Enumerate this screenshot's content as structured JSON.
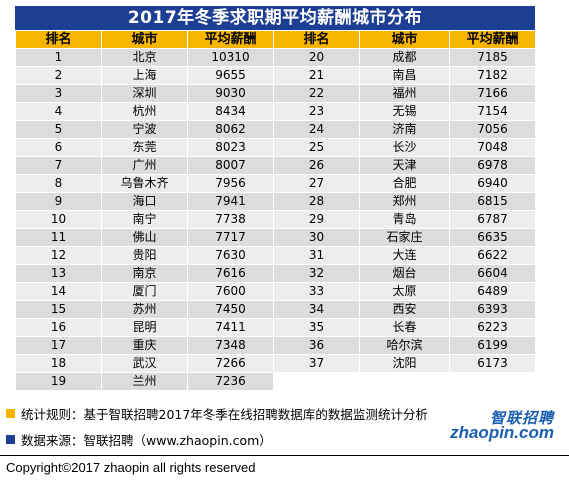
{
  "title": "2017年冬季求职期平均薪酬城市分布",
  "headers": [
    "排名",
    "城市",
    "平均薪酬",
    "排名",
    "城市",
    "平均薪酬"
  ],
  "colors": {
    "title_bg": "#1c3f94",
    "header_bg": "#f7b500",
    "row_odd": "#dcdcdc",
    "row_even": "#ededed",
    "note1_square": "#f7b500",
    "note2_square": "#1c3f94",
    "logo": "#1c5fb0"
  },
  "rows": [
    {
      "r1": "1",
      "c1": "北京",
      "s1": "10310",
      "r2": "20",
      "c2": "成都",
      "s2": "7185"
    },
    {
      "r1": "2",
      "c1": "上海",
      "s1": "9655",
      "r2": "21",
      "c2": "南昌",
      "s2": "7182"
    },
    {
      "r1": "3",
      "c1": "深圳",
      "s1": "9030",
      "r2": "22",
      "c2": "福州",
      "s2": "7166"
    },
    {
      "r1": "4",
      "c1": "杭州",
      "s1": "8434",
      "r2": "23",
      "c2": "无锡",
      "s2": "7154"
    },
    {
      "r1": "5",
      "c1": "宁波",
      "s1": "8062",
      "r2": "24",
      "c2": "济南",
      "s2": "7056"
    },
    {
      "r1": "6",
      "c1": "东莞",
      "s1": "8023",
      "r2": "25",
      "c2": "长沙",
      "s2": "7048"
    },
    {
      "r1": "7",
      "c1": "广州",
      "s1": "8007",
      "r2": "26",
      "c2": "天津",
      "s2": "6978"
    },
    {
      "r1": "8",
      "c1": "乌鲁木齐",
      "s1": "7956",
      "r2": "27",
      "c2": "合肥",
      "s2": "6940"
    },
    {
      "r1": "9",
      "c1": "海口",
      "s1": "7941",
      "r2": "28",
      "c2": "郑州",
      "s2": "6815"
    },
    {
      "r1": "10",
      "c1": "南宁",
      "s1": "7738",
      "r2": "29",
      "c2": "青岛",
      "s2": "6787"
    },
    {
      "r1": "11",
      "c1": "佛山",
      "s1": "7717",
      "r2": "30",
      "c2": "石家庄",
      "s2": "6635"
    },
    {
      "r1": "12",
      "c1": "贵阳",
      "s1": "7630",
      "r2": "31",
      "c2": "大连",
      "s2": "6622"
    },
    {
      "r1": "13",
      "c1": "南京",
      "s1": "7616",
      "r2": "32",
      "c2": "烟台",
      "s2": "6604"
    },
    {
      "r1": "14",
      "c1": "厦门",
      "s1": "7600",
      "r2": "33",
      "c2": "太原",
      "s2": "6489"
    },
    {
      "r1": "15",
      "c1": "苏州",
      "s1": "7450",
      "r2": "34",
      "c2": "西安",
      "s2": "6393"
    },
    {
      "r1": "16",
      "c1": "昆明",
      "s1": "7411",
      "r2": "35",
      "c2": "长春",
      "s2": "6223"
    },
    {
      "r1": "17",
      "c1": "重庆",
      "s1": "7348",
      "r2": "36",
      "c2": "哈尔滨",
      "s2": "6199"
    },
    {
      "r1": "18",
      "c1": "武汉",
      "s1": "7266",
      "r2": "37",
      "c2": "沈阳",
      "s2": "6173"
    },
    {
      "r1": "19",
      "c1": "兰州",
      "s1": "7236",
      "r2": "",
      "c2": "",
      "s2": ""
    }
  ],
  "notes": {
    "rule": "统计规则：基于智联招聘2017年冬季在线招聘数据库的数据监测统计分析",
    "source": "数据来源：智联招聘（www.zhaopin.com）"
  },
  "logo": {
    "cn": "智联招聘",
    "en": "zhaopin.com"
  },
  "copyright": "Copyright©2017 zhaopin all rights reserved"
}
